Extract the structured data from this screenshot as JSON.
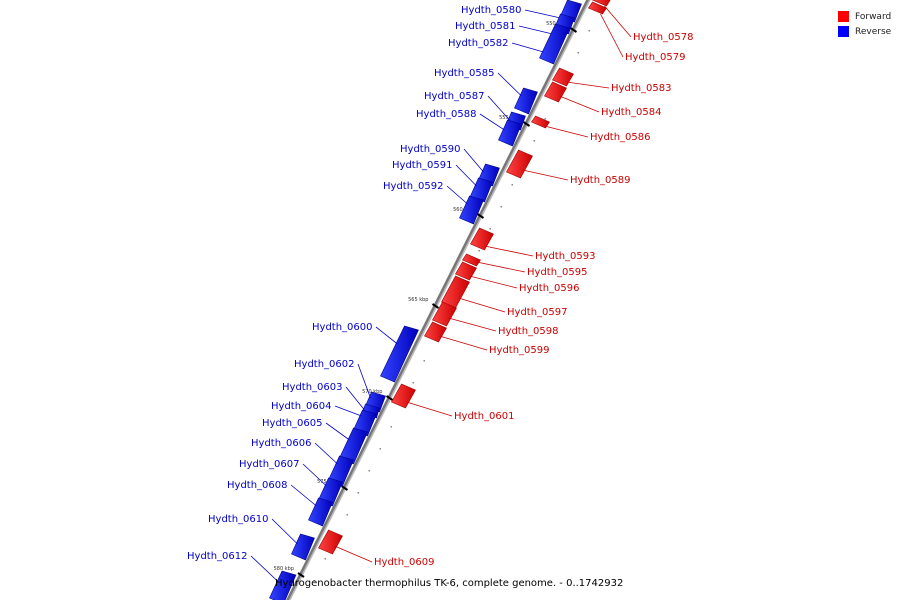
{
  "title": "Hydrogenobacter thermophilus TK-6, complete genome. - 0..1742932",
  "legend": [
    {
      "label": "Forward",
      "color": "#ff0000"
    },
    {
      "label": "Reverse",
      "color": "#0000ff"
    }
  ],
  "colors": {
    "forward": "#ff0000",
    "reverse": "#0000ff",
    "forward_label": "#cc0000",
    "reverse_label": "#0000cc",
    "backbone": "#777777"
  },
  "position_labels": [
    "550 kbp",
    "555 kbp",
    "560 kbp",
    "565 kbp",
    "570 kbp",
    "575 kbp",
    "580 kbp"
  ],
  "genes": [
    {
      "name": "Hydth_0578",
      "strand": "forward"
    },
    {
      "name": "Hydth_0579",
      "strand": "forward"
    },
    {
      "name": "Hydth_0580",
      "strand": "reverse"
    },
    {
      "name": "Hydth_0581",
      "strand": "reverse"
    },
    {
      "name": "Hydth_0582",
      "strand": "reverse"
    },
    {
      "name": "Hydth_0583",
      "strand": "forward"
    },
    {
      "name": "Hydth_0584",
      "strand": "forward"
    },
    {
      "name": "Hydth_0585",
      "strand": "reverse"
    },
    {
      "name": "Hydth_0586",
      "strand": "forward"
    },
    {
      "name": "Hydth_0587",
      "strand": "reverse"
    },
    {
      "name": "Hydth_0588",
      "strand": "reverse"
    },
    {
      "name": "Hydth_0589",
      "strand": "forward"
    },
    {
      "name": "Hydth_0590",
      "strand": "reverse"
    },
    {
      "name": "Hydth_0591",
      "strand": "reverse"
    },
    {
      "name": "Hydth_0592",
      "strand": "reverse"
    },
    {
      "name": "Hydth_0593",
      "strand": "forward"
    },
    {
      "name": "Hydth_0595",
      "strand": "forward"
    },
    {
      "name": "Hydth_0596",
      "strand": "forward"
    },
    {
      "name": "Hydth_0597",
      "strand": "forward"
    },
    {
      "name": "Hydth_0598",
      "strand": "forward"
    },
    {
      "name": "Hydth_0599",
      "strand": "forward"
    },
    {
      "name": "Hydth_0600",
      "strand": "reverse"
    },
    {
      "name": "Hydth_0601",
      "strand": "forward"
    },
    {
      "name": "Hydth_0602",
      "strand": "reverse"
    },
    {
      "name": "Hydth_0603",
      "strand": "reverse"
    },
    {
      "name": "Hydth_0604",
      "strand": "reverse"
    },
    {
      "name": "Hydth_0605",
      "strand": "reverse"
    },
    {
      "name": "Hydth_0606",
      "strand": "reverse"
    },
    {
      "name": "Hydth_0607",
      "strand": "reverse"
    },
    {
      "name": "Hydth_0608",
      "strand": "reverse"
    },
    {
      "name": "Hydth_0609",
      "strand": "forward"
    },
    {
      "name": "Hydth_0610",
      "strand": "reverse"
    },
    {
      "name": "Hydth_0612",
      "strand": "reverse"
    }
  ]
}
